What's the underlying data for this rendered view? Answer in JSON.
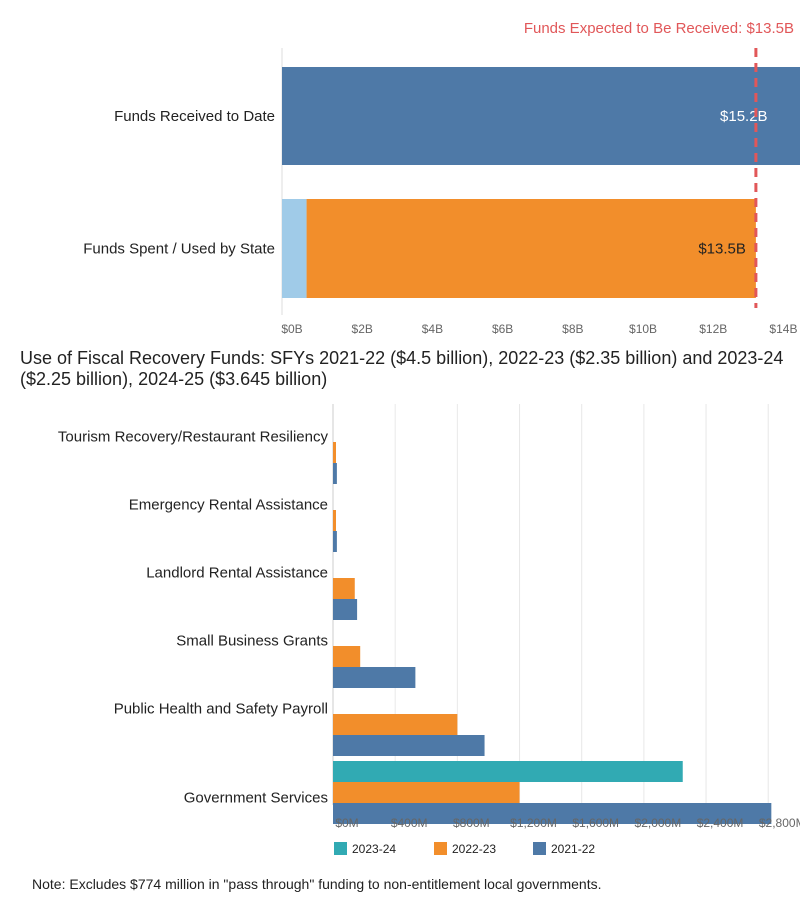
{
  "colors": {
    "received": "#4e79a7",
    "spent": "#f28e2b",
    "spent_light": "#a0cbe8",
    "y2023": "#31aab3",
    "y2022": "#f28e2b",
    "y2021": "#4e79a7",
    "marker": "#e15759",
    "grid": "#e8e8e8",
    "tick": "#666666"
  },
  "chart_data": [
    {
      "type": "bar",
      "orientation": "horizontal",
      "categories": [
        "Funds Received to Date",
        "Funds Spent / Used by State"
      ],
      "series": [
        {
          "name": "prior/other",
          "values": [
            0,
            0.7
          ]
        },
        {
          "name": "main",
          "values": [
            15.2,
            12.8
          ]
        }
      ],
      "totals": [
        15.2,
        13.5
      ],
      "data_labels": [
        "$15.2B",
        "$13.5B"
      ],
      "reference_line": {
        "value": 13.5,
        "label": "Funds Expected to Be Received: $13.5B"
      },
      "xlim": [
        0,
        14.5
      ],
      "x_ticks": [
        0,
        2,
        4,
        6,
        8,
        10,
        12,
        14
      ],
      "x_tick_labels": [
        "$0B",
        "$2B",
        "$4B",
        "$6B",
        "$8B",
        "$10B",
        "$12B",
        "$14B"
      ],
      "xlabel": "",
      "ylabel": ""
    },
    {
      "type": "bar",
      "orientation": "horizontal",
      "title": "Use of Fiscal Recovery Funds: SFYs 2021-22 ($4.5 billion), 2022-23 ($2.35 billion) and 2023-24 ($2.25 billion), 2024-25 ($3.645 billion)",
      "categories": [
        "Tourism Recovery/Restaurant Resiliency",
        "Emergency Rental Assistance",
        "Landlord Rental Assistance",
        "Small Business Grants",
        "Public Health and Safety Payroll",
        "Government Services"
      ],
      "series": [
        {
          "name": "2023-24",
          "values": [
            0,
            0,
            0,
            0,
            0,
            2250
          ]
        },
        {
          "name": "2022-23",
          "values": [
            15,
            15,
            140,
            175,
            800,
            1200
          ]
        },
        {
          "name": "2021-22",
          "values": [
            25,
            25,
            155,
            530,
            975,
            2820
          ]
        }
      ],
      "xlim": [
        0,
        2850
      ],
      "x_ticks": [
        0,
        400,
        800,
        1200,
        1600,
        2000,
        2400,
        2800
      ],
      "x_tick_labels": [
        "$0M",
        "$400M",
        "$800M",
        "$1,200M",
        "$1,600M",
        "$2,000M",
        "$2,400M",
        "$2,800M"
      ],
      "legend": [
        "2023-24",
        "2022-23",
        "2021-22"
      ],
      "legend_position": "bottom",
      "xlabel": "",
      "ylabel": ""
    }
  ],
  "note": "Note: Excludes $774 million in \"pass through\" funding to non-entitlement local governments."
}
